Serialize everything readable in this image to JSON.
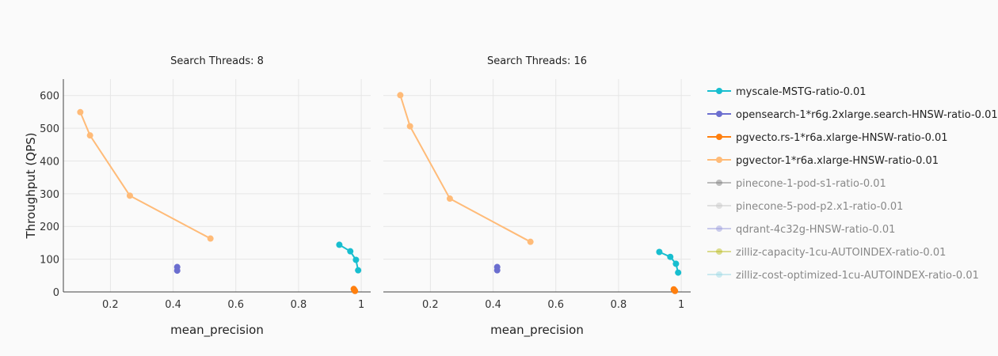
{
  "chart_data": {
    "type": "line",
    "ylabel": "Throughput (QPS)",
    "xlabel": "mean_precision",
    "xlim": [
      0.05,
      1.03
    ],
    "ylim": [
      0,
      650
    ],
    "xticks": [
      0.2,
      0.4,
      0.6,
      0.8,
      1
    ],
    "xtick_labels": [
      "0.2",
      "0.4",
      "0.6",
      "0.8",
      "1"
    ],
    "yticks": [
      0,
      100,
      200,
      300,
      400,
      500,
      600
    ],
    "grid": true,
    "legend_position": "right",
    "subplots": [
      {
        "title": "Search Threads: 8",
        "series": [
          {
            "name": "myscale-MSTG-ratio-0.01",
            "x": [
              0.93,
              0.965,
              0.983,
              0.99
            ],
            "y": [
              144,
              124,
              98,
              66
            ]
          },
          {
            "name": "opensearch-1*r6g.2xlarge.search-HNSW-ratio-0.01",
            "x": [
              0.413,
              0.413
            ],
            "y": [
              76,
              65
            ]
          },
          {
            "name": "pgvecto.rs-1*r6a.xlarge-HNSW-ratio-0.01",
            "x": [
              0.976,
              0.978,
              0.98
            ],
            "y": [
              9,
              6,
              3
            ]
          },
          {
            "name": "pgvector-1*r6a.xlarge-HNSW-ratio-0.01",
            "x": [
              0.104,
              0.135,
              0.262,
              0.519
            ],
            "y": [
              549,
              478,
              294,
              163
            ]
          }
        ]
      },
      {
        "title": "Search Threads: 16",
        "series": [
          {
            "name": "myscale-MSTG-ratio-0.01",
            "x": [
              0.93,
              0.965,
              0.983,
              0.99
            ],
            "y": [
              122,
              107,
              86,
              59
            ]
          },
          {
            "name": "opensearch-1*r6g.2xlarge.search-HNSW-ratio-0.01",
            "x": [
              0.413,
              0.413
            ],
            "y": [
              76,
              66
            ]
          },
          {
            "name": "pgvecto.rs-1*r6a.xlarge-HNSW-ratio-0.01",
            "x": [
              0.976,
              0.978,
              0.98
            ],
            "y": [
              8,
              5,
              3
            ]
          },
          {
            "name": "pgvector-1*r6a.xlarge-HNSW-ratio-0.01",
            "x": [
              0.104,
              0.135,
              0.262,
              0.519
            ],
            "y": [
              601,
              506,
              285,
              153
            ]
          }
        ]
      }
    ],
    "legend": [
      {
        "name": "myscale-MSTG-ratio-0.01",
        "color": "#17becf",
        "visible": true
      },
      {
        "name": "opensearch-1*r6g.2xlarge.search-HNSW-ratio-0.01",
        "color": "#6b6ecf",
        "visible": true
      },
      {
        "name": "pgvecto.rs-1*r6a.xlarge-HNSW-ratio-0.01",
        "color": "#ff7f0e",
        "visible": true
      },
      {
        "name": "pgvector-1*r6a.xlarge-HNSW-ratio-0.01",
        "color": "#ffbb78",
        "visible": true
      },
      {
        "name": "pinecone-1-pod-s1-ratio-0.01",
        "color": "#7f7f7f",
        "visible": false
      },
      {
        "name": "pinecone-5-pod-p2.x1-ratio-0.01",
        "color": "#c7c7c7",
        "visible": false
      },
      {
        "name": "qdrant-4c32g-HNSW-ratio-0.01",
        "color": "#9c9ede",
        "visible": false
      },
      {
        "name": "zilliz-capacity-1cu-AUTOINDEX-ratio-0.01",
        "color": "#bcbd22",
        "visible": false
      },
      {
        "name": "zilliz-cost-optimized-1cu-AUTOINDEX-ratio-0.01",
        "color": "#9edae5",
        "visible": false
      }
    ]
  }
}
